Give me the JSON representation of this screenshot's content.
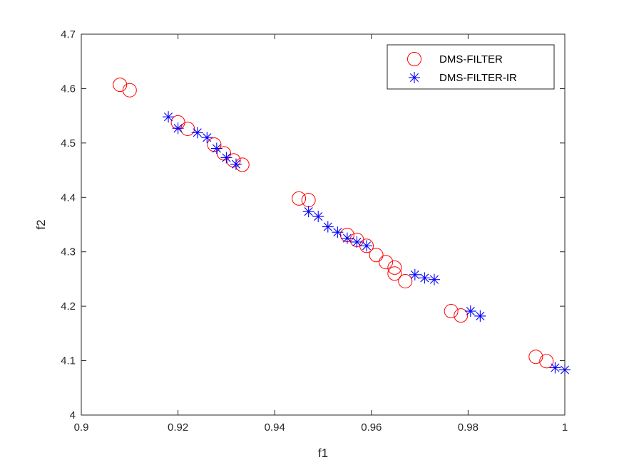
{
  "chart_data": {
    "type": "scatter",
    "title": "",
    "xlabel": "f1",
    "ylabel": "f2",
    "xlim": [
      0.9,
      1.0
    ],
    "ylim": [
      4.0,
      4.7
    ],
    "xticks": [
      "0.9",
      "0.92",
      "0.94",
      "0.96",
      "0.98",
      "1"
    ],
    "yticks": [
      "4",
      "4.1",
      "4.2",
      "4.3",
      "4.4",
      "4.5",
      "4.6",
      "4.7"
    ],
    "grid": false,
    "legend_position": "top-right",
    "series": [
      {
        "name": "DMS-FILTER",
        "marker": "circle",
        "color": "#FF0000",
        "points": [
          [
            0.908,
            4.607
          ],
          [
            0.91,
            4.597
          ],
          [
            0.92,
            4.538
          ],
          [
            0.922,
            4.526
          ],
          [
            0.9275,
            4.497
          ],
          [
            0.9295,
            4.481
          ],
          [
            0.9315,
            4.468
          ],
          [
            0.9333,
            4.46
          ],
          [
            0.945,
            4.398
          ],
          [
            0.947,
            4.395
          ],
          [
            0.955,
            4.331
          ],
          [
            0.957,
            4.322
          ],
          [
            0.959,
            4.311
          ],
          [
            0.961,
            4.294
          ],
          [
            0.963,
            4.281
          ],
          [
            0.9648,
            4.271
          ],
          [
            0.9648,
            4.26
          ],
          [
            0.967,
            4.246
          ],
          [
            0.9765,
            4.191
          ],
          [
            0.9785,
            4.183
          ],
          [
            0.994,
            4.107
          ],
          [
            0.9962,
            4.099
          ]
        ]
      },
      {
        "name": "DMS-FILTER-IR",
        "marker": "asterisk",
        "color": "#0000FF",
        "points": [
          [
            0.918,
            4.548
          ],
          [
            0.92,
            4.527
          ],
          [
            0.924,
            4.519
          ],
          [
            0.926,
            4.51
          ],
          [
            0.928,
            4.49
          ],
          [
            0.93,
            4.473
          ],
          [
            0.932,
            4.461
          ],
          [
            0.947,
            4.374
          ],
          [
            0.949,
            4.365
          ],
          [
            0.951,
            4.346
          ],
          [
            0.953,
            4.336
          ],
          [
            0.955,
            4.325
          ],
          [
            0.957,
            4.318
          ],
          [
            0.959,
            4.311
          ],
          [
            0.969,
            4.258
          ],
          [
            0.971,
            4.252
          ],
          [
            0.973,
            4.249
          ],
          [
            0.9805,
            4.191
          ],
          [
            0.9825,
            4.182
          ],
          [
            0.998,
            4.087
          ],
          [
            1.0,
            4.083
          ]
        ]
      }
    ]
  }
}
